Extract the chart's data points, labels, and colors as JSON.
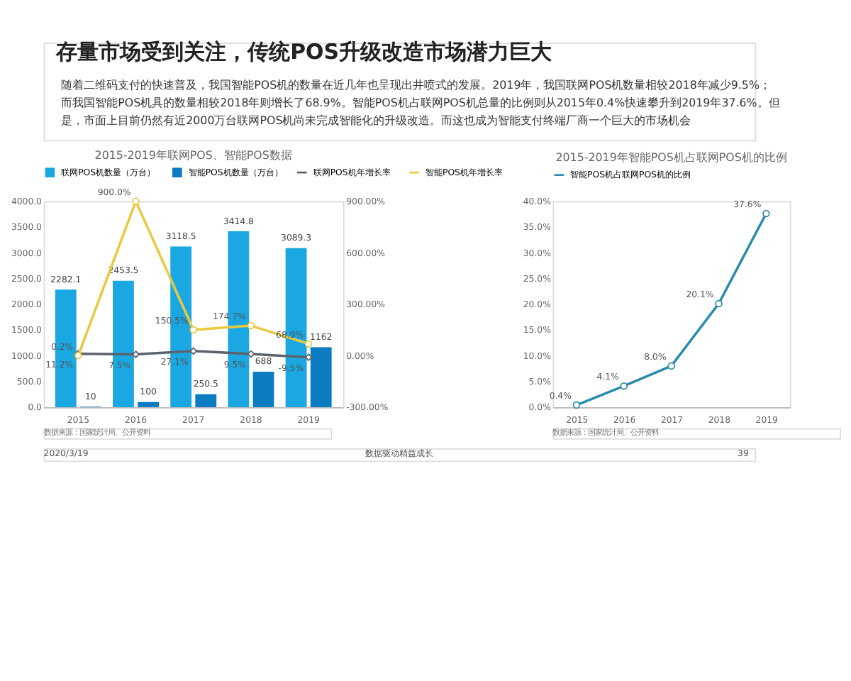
{
  "chart_data": [
    {
      "type": "bar",
      "title": "2015-2019年联网POS、智能POS数据",
      "categories": [
        "2015",
        "2016",
        "2017",
        "2018",
        "2019"
      ],
      "series": [
        {
          "name": "联网POS机数量（万台）",
          "color": "#1ba8e2",
          "values": [
            2282.1,
            2453.5,
            3118.5,
            3414.8,
            3089.3
          ],
          "value_labels": [
            "2282.1",
            "2453.5",
            "3118.5",
            "3414.8",
            "3089.3"
          ]
        },
        {
          "name": "智能POS机数量（万台）",
          "color": "#0b7cc2",
          "values": [
            10,
            100,
            250.5,
            688,
            1162
          ],
          "value_labels": [
            "10",
            "100",
            "250.5",
            "688",
            "1162"
          ]
        },
        {
          "name": "联网POS机年增长率",
          "type": "line",
          "axis": "y2",
          "color": "#5a626c",
          "marker": "diamond",
          "values": [
            11.2,
            7.5,
            27.1,
            9.5,
            -9.5
          ],
          "value_labels": [
            "11.2%",
            "7.5%",
            "27.1%",
            "9.5%",
            "-9.5%"
          ]
        },
        {
          "name": "智能POS机年增长率",
          "type": "line",
          "axis": "y2",
          "color": "#e9c93f",
          "marker": "circle",
          "values": [
            0.2,
            900.0,
            150.5,
            174.7,
            68.9
          ],
          "value_labels": [
            "0.2%",
            "900.0%",
            "150.5%",
            "174.7%",
            "68.9%"
          ]
        }
      ],
      "ylim": [
        0,
        4000
      ],
      "yticks": [
        {
          "value": 0,
          "label": "0.0"
        },
        {
          "value": 500,
          "label": "500.0"
        },
        {
          "value": 1000,
          "label": "1000.0"
        },
        {
          "value": 1500,
          "label": "1500.0"
        },
        {
          "value": 2000,
          "label": "2000.0"
        },
        {
          "value": 2500,
          "label": "2500.0"
        },
        {
          "value": 3000,
          "label": "3000.0"
        },
        {
          "value": 3500,
          "label": "3500.0"
        },
        {
          "value": 4000,
          "label": "4000.0"
        }
      ],
      "y2lim": [
        -300,
        900
      ],
      "y2ticks": [
        {
          "value": -300,
          "label": "-300.00%"
        },
        {
          "value": 0,
          "label": "0.00%"
        },
        {
          "value": 300,
          "label": "300.00%"
        },
        {
          "value": 600,
          "label": "600.00%"
        },
        {
          "value": 900,
          "label": "900.00%"
        }
      ],
      "legend": "top",
      "grid": false,
      "annotations": [
        "存量市场受到关注，传统POS升级改造市场潜力巨大",
        "随着二维码支付的快速普及，我国智能POS机的数量在近几年也呈现出井喷式的发展。2019年，我国联网POS机数量相较2018年减少9.5%；而我国智能POS机具的数量相较2018年则增长了68.9%。智能POS机占联网POS机总量的比例则从2015年0.4%快速攀升到2019年37.6%。但是，市面上目前仍然有近2000万台联网POS机尚未完成智能化的升级改造。而这也成为智能支付终端厂商一个巨大的市场机会",
        "数据来源：国家统计局、公开资料"
      ]
    },
    {
      "type": "line",
      "title": "2015-2019年智能POS机占联网POS机的比例",
      "categories": [
        "2015",
        "2016",
        "2017",
        "2018",
        "2019"
      ],
      "series": [
        {
          "name": "智能POS机占联网POS机的比例",
          "color": "#2b8bab",
          "values": [
            0.4,
            4.1,
            8.0,
            20.1,
            37.6
          ],
          "value_labels": [
            "0.4%",
            "4.1%",
            "8.0%",
            "20.1%",
            "37.6%"
          ]
        }
      ],
      "ylim": [
        0,
        40
      ],
      "yticks": [
        {
          "value": 0,
          "label": "0.0%"
        },
        {
          "value": 5,
          "label": "5.0%"
        },
        {
          "value": 10,
          "label": "10.0%"
        },
        {
          "value": 15,
          "label": "15.0%"
        },
        {
          "value": 20,
          "label": "20.0%"
        },
        {
          "value": 25,
          "label": "25.0%"
        },
        {
          "value": 30,
          "label": "30.0%"
        },
        {
          "value": 35,
          "label": "35.0%"
        },
        {
          "value": 40,
          "label": "40.0%"
        }
      ],
      "marker": "circle",
      "legend": "top",
      "grid": false,
      "annotations": [
        "数据来源：国家统计局、公开资料",
        "2020/3/19",
        "数据驱动精益成长",
        "39"
      ]
    }
  ]
}
